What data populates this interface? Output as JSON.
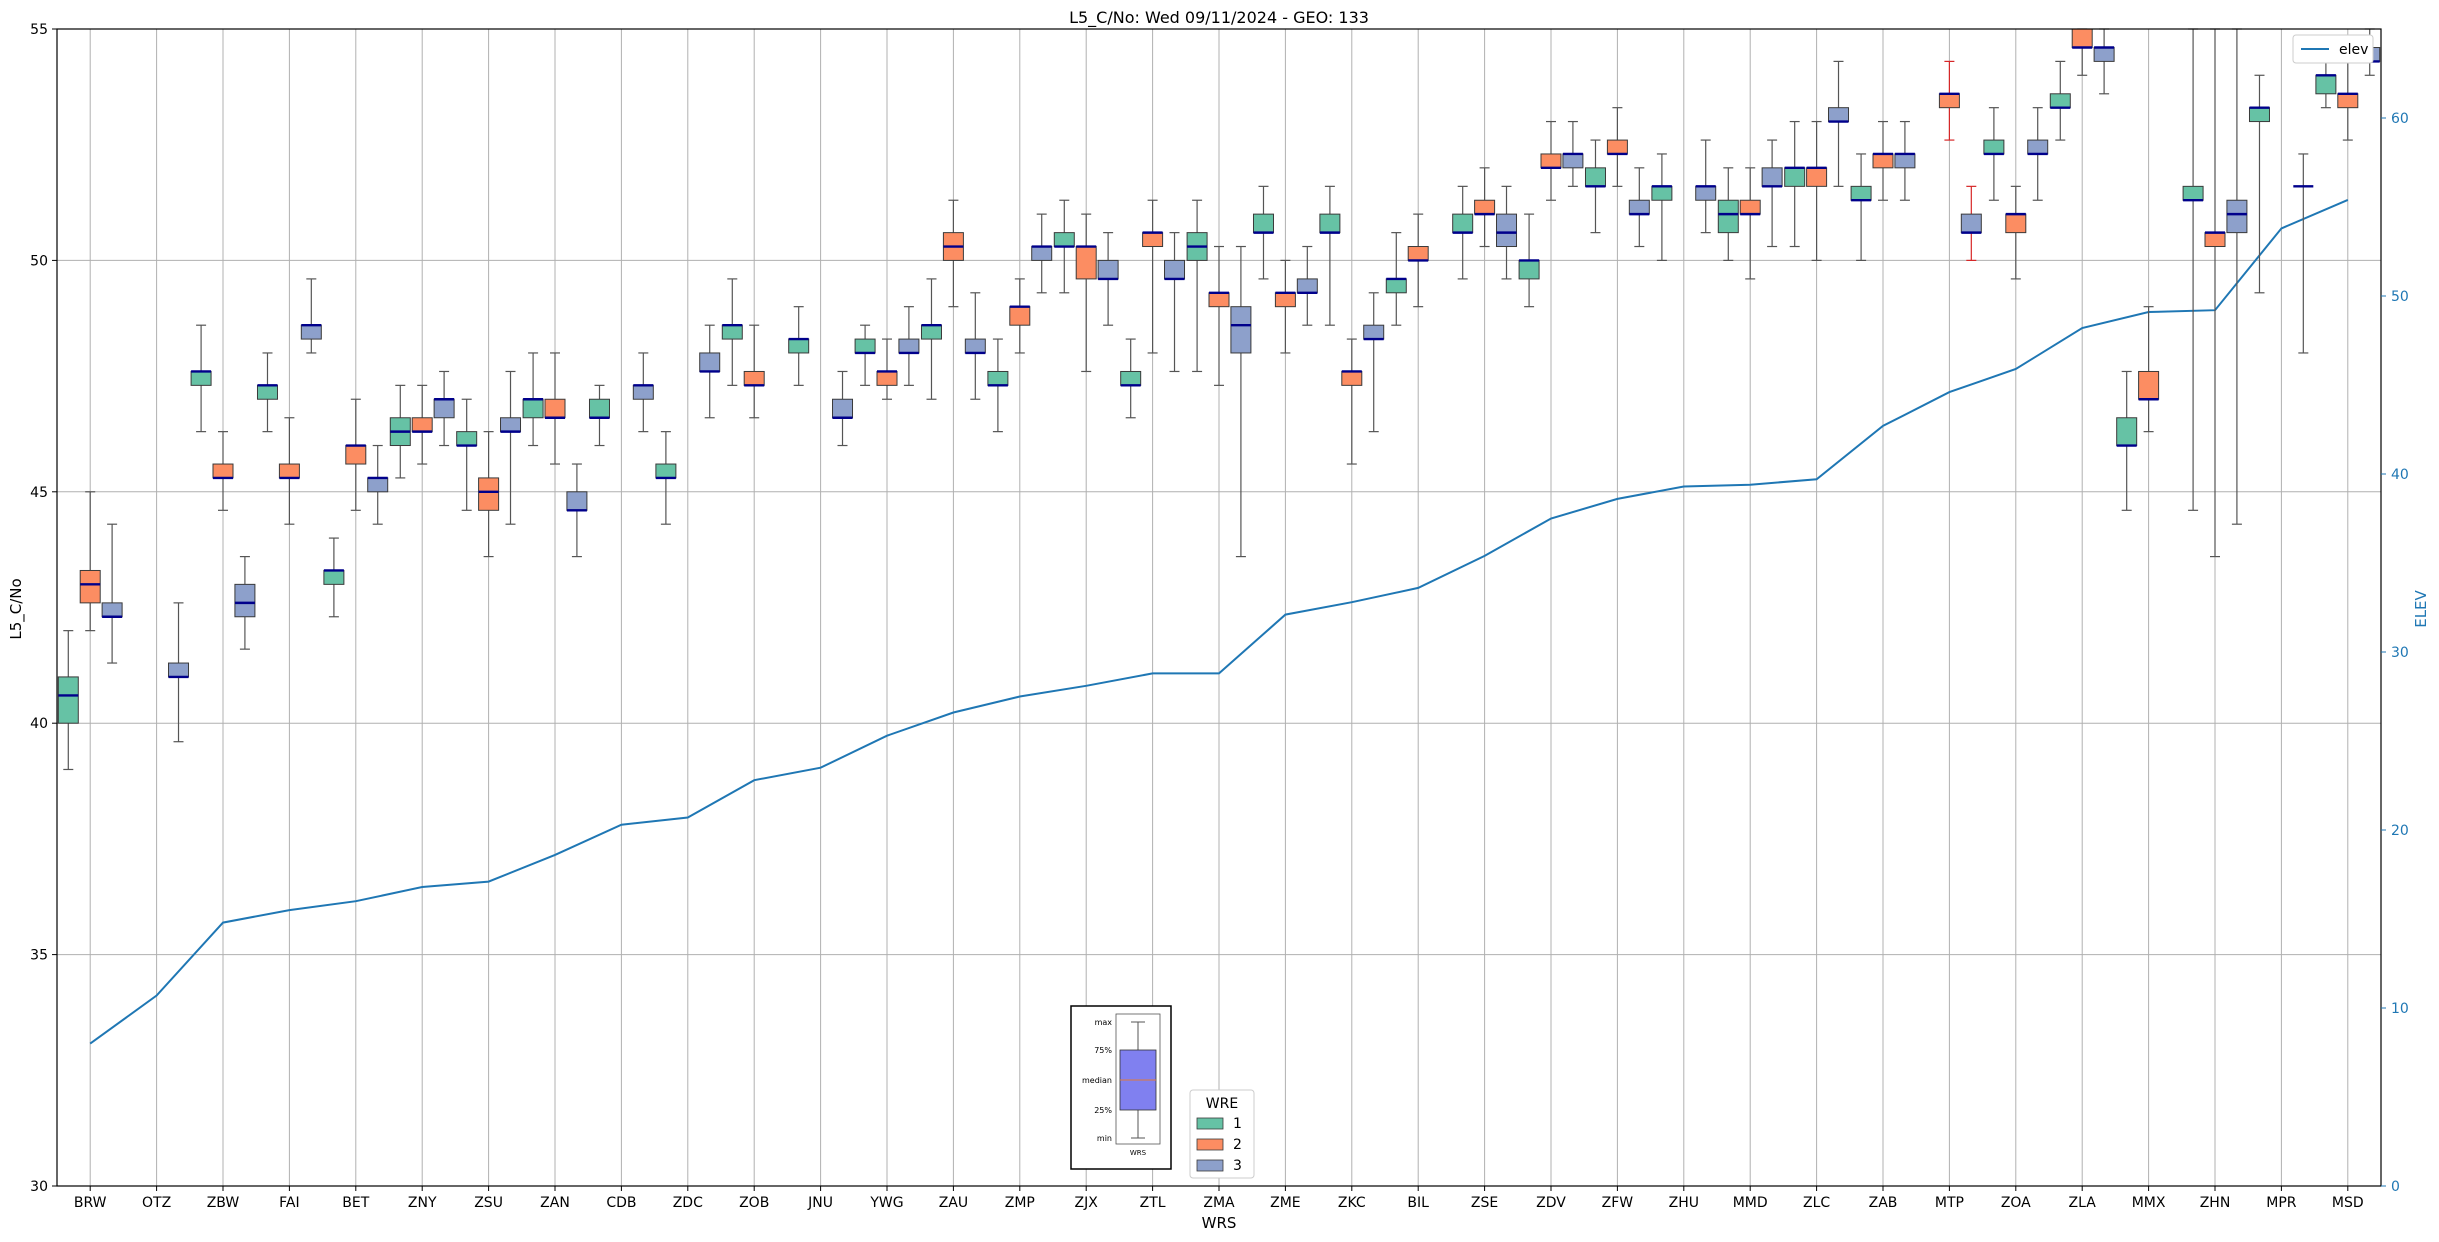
{
  "chart_data": {
    "type": "box",
    "title": "L5_C/No: Wed 09/11/2024 - GEO: 133",
    "xlabel": "WRS",
    "ylabel": "L5_C/No",
    "y2label": "ELEV",
    "ylim": [
      30,
      55
    ],
    "y2lim": [
      0,
      65
    ],
    "yticks": [
      30,
      35,
      40,
      45,
      50,
      55
    ],
    "y2ticks": [
      0,
      10,
      20,
      30,
      40,
      50,
      60
    ],
    "grid": true,
    "categories": [
      "BRW",
      "OTZ",
      "ZBW",
      "FAI",
      "BET",
      "ZNY",
      "ZSU",
      "ZAN",
      "CDB",
      "ZDC",
      "ZOB",
      "JNU",
      "YWG",
      "ZAU",
      "ZMP",
      "ZJX",
      "ZTL",
      "ZMA",
      "ZME",
      "ZKC",
      "BIL",
      "ZSE",
      "ZDV",
      "ZFW",
      "ZHU",
      "MMD",
      "ZLC",
      "ZAB",
      "MTP",
      "ZOA",
      "ZLA",
      "MMX",
      "ZHN",
      "MPR",
      "MSD"
    ],
    "colors": {
      "wre1": "#66c2a5",
      "wre2": "#fc8d62",
      "wre3": "#8da0cb",
      "elev_line": "#1f77b4",
      "median": "#00008b",
      "whisker": "#555555",
      "alt_whisker": "#d62728",
      "legend_box": "#8080f0"
    },
    "legend": {
      "title": "WRE",
      "labels": [
        "1",
        "2",
        "3"
      ],
      "placement": "bottom-center"
    },
    "line_legend": {
      "label": "elev",
      "placement": "top-right"
    },
    "series": [
      {
        "name": "1",
        "color_key": "wre1",
        "boxes": [
          {
            "cat": 0,
            "whislo": 39,
            "q1": 40,
            "med": 40.6,
            "q3": 41,
            "whishi": 42
          },
          {
            "cat": 2,
            "whislo": 46.3,
            "q1": 47.3,
            "med": 47.6,
            "q3": 47.6,
            "whishi": 48.6
          },
          {
            "cat": 3,
            "whislo": 46.3,
            "q1": 47,
            "med": 47.3,
            "q3": 47.3,
            "whishi": 48
          },
          {
            "cat": 4,
            "whislo": 42.3,
            "q1": 43,
            "med": 43.3,
            "q3": 43.3,
            "whishi": 44
          },
          {
            "cat": 5,
            "whislo": 45.3,
            "q1": 46,
            "med": 46.3,
            "q3": 46.6,
            "whishi": 47.3
          },
          {
            "cat": 6,
            "whislo": 44.6,
            "q1": 46,
            "med": 46,
            "q3": 46.3,
            "whishi": 47
          },
          {
            "cat": 7,
            "whislo": 46,
            "q1": 46.6,
            "med": 47,
            "q3": 47,
            "whishi": 48
          },
          {
            "cat": 8,
            "whislo": 46,
            "q1": 46.6,
            "med": 46.6,
            "q3": 47,
            "whishi": 47.3
          },
          {
            "cat": 9,
            "whislo": 44.3,
            "q1": 45.3,
            "med": 45.3,
            "q3": 45.6,
            "whishi": 46.3
          },
          {
            "cat": 10,
            "whislo": 47.3,
            "q1": 48.3,
            "med": 48.6,
            "q3": 48.6,
            "whishi": 49.6
          },
          {
            "cat": 11,
            "whislo": 47.3,
            "q1": 48,
            "med": 48.3,
            "q3": 48.3,
            "whishi": 49
          },
          {
            "cat": 12,
            "whislo": 47.3,
            "q1": 48,
            "med": 48,
            "q3": 48.3,
            "whishi": 48.6
          },
          {
            "cat": 13,
            "whislo": 47,
            "q1": 48.3,
            "med": 48.6,
            "q3": 48.6,
            "whishi": 49.6
          },
          {
            "cat": 14,
            "whislo": 46.3,
            "q1": 47.3,
            "med": 47.3,
            "q3": 47.6,
            "whishi": 48.3
          },
          {
            "cat": 15,
            "whislo": 49.3,
            "q1": 50.3,
            "med": 50.3,
            "q3": 50.6,
            "whishi": 51.3
          },
          {
            "cat": 16,
            "whislo": 46.6,
            "q1": 47.3,
            "med": 47.3,
            "q3": 47.6,
            "whishi": 48.3
          },
          {
            "cat": 17,
            "whislo": 47.6,
            "q1": 50,
            "med": 50.3,
            "q3": 50.6,
            "whishi": 51.3
          },
          {
            "cat": 18,
            "whislo": 49.6,
            "q1": 50.6,
            "med": 50.6,
            "q3": 51,
            "whishi": 51.6
          },
          {
            "cat": 19,
            "whislo": 48.6,
            "q1": 50.6,
            "med": 50.6,
            "q3": 51,
            "whishi": 51.6
          },
          {
            "cat": 20,
            "whislo": 48.6,
            "q1": 49.3,
            "med": 49.6,
            "q3": 49.6,
            "whishi": 50.6
          },
          {
            "cat": 21,
            "whislo": 49.6,
            "q1": 50.6,
            "med": 50.6,
            "q3": 51,
            "whishi": 51.6
          },
          {
            "cat": 22,
            "whislo": 49,
            "q1": 49.6,
            "med": 50,
            "q3": 50,
            "whishi": 51
          },
          {
            "cat": 23,
            "whislo": 50.6,
            "q1": 51.6,
            "med": 51.6,
            "q3": 52,
            "whishi": 52.6
          },
          {
            "cat": 24,
            "whislo": 50,
            "q1": 51.3,
            "med": 51.6,
            "q3": 51.6,
            "whishi": 52.3
          },
          {
            "cat": 25,
            "whislo": 50,
            "q1": 50.6,
            "med": 51,
            "q3": 51.3,
            "whishi": 52
          },
          {
            "cat": 26,
            "whislo": 50.3,
            "q1": 51.6,
            "med": 52,
            "q3": 52,
            "whishi": 53
          },
          {
            "cat": 27,
            "whislo": 50,
            "q1": 51.3,
            "med": 51.3,
            "q3": 51.6,
            "whishi": 52.3
          },
          {
            "cat": 29,
            "whislo": 51.3,
            "q1": 52.3,
            "med": 52.3,
            "q3": 52.6,
            "whishi": 53.3
          },
          {
            "cat": 30,
            "whislo": 52.6,
            "q1": 53.3,
            "med": 53.3,
            "q3": 53.6,
            "whishi": 54.3
          },
          {
            "cat": 31,
            "whislo": 44.6,
            "q1": 46,
            "med": 46,
            "q3": 46.6,
            "whishi": 47.6
          },
          {
            "cat": 32,
            "whislo": 44.6,
            "q1": 51.3,
            "med": 51.3,
            "q3": 51.6,
            "whishi": 55
          },
          {
            "cat": 33,
            "whislo": 49.3,
            "q1": 53,
            "med": 53.3,
            "q3": 53.3,
            "whishi": 54
          },
          {
            "cat": 34,
            "whislo": 53.3,
            "q1": 53.6,
            "med": 54,
            "q3": 54,
            "whishi": 54.6
          }
        ]
      },
      {
        "name": "2",
        "color_key": "wre2",
        "boxes": [
          {
            "cat": 0,
            "whislo": 42,
            "q1": 42.6,
            "med": 43,
            "q3": 43.3,
            "whishi": 45
          },
          {
            "cat": 2,
            "whislo": 44.6,
            "q1": 45.3,
            "med": 45.3,
            "q3": 45.6,
            "whishi": 46.3
          },
          {
            "cat": 3,
            "whislo": 44.3,
            "q1": 45.3,
            "med": 45.3,
            "q3": 45.6,
            "whishi": 46.6
          },
          {
            "cat": 4,
            "whislo": 44.6,
            "q1": 45.6,
            "med": 46,
            "q3": 46,
            "whishi": 47
          },
          {
            "cat": 5,
            "whislo": 45.6,
            "q1": 46.3,
            "med": 46.3,
            "q3": 46.6,
            "whishi": 47.3
          },
          {
            "cat": 6,
            "whislo": 43.6,
            "q1": 44.6,
            "med": 45,
            "q3": 45.3,
            "whishi": 46.3
          },
          {
            "cat": 7,
            "whislo": 45.6,
            "q1": 46.6,
            "med": 46.6,
            "q3": 47,
            "whishi": 48
          },
          {
            "cat": 10,
            "whislo": 46.6,
            "q1": 47.3,
            "med": 47.3,
            "q3": 47.6,
            "whishi": 48.6
          },
          {
            "cat": 12,
            "whislo": 47,
            "q1": 47.3,
            "med": 47.6,
            "q3": 47.6,
            "whishi": 48.3
          },
          {
            "cat": 13,
            "whislo": 49,
            "q1": 50,
            "med": 50.3,
            "q3": 50.6,
            "whishi": 51.3
          },
          {
            "cat": 14,
            "whislo": 48,
            "q1": 48.6,
            "med": 49,
            "q3": 49,
            "whishi": 49.6
          },
          {
            "cat": 15,
            "whislo": 47.6,
            "q1": 49.6,
            "med": 50.3,
            "q3": 50.3,
            "whishi": 51
          },
          {
            "cat": 16,
            "whislo": 48,
            "q1": 50.3,
            "med": 50.6,
            "q3": 50.6,
            "whishi": 51.3
          },
          {
            "cat": 17,
            "whislo": 47.3,
            "q1": 49,
            "med": 49.3,
            "q3": 49.3,
            "whishi": 50.3
          },
          {
            "cat": 18,
            "whislo": 48,
            "q1": 49,
            "med": 49.3,
            "q3": 49.3,
            "whishi": 50
          },
          {
            "cat": 19,
            "whislo": 45.6,
            "q1": 47.3,
            "med": 47.6,
            "q3": 47.6,
            "whishi": 48.3
          },
          {
            "cat": 20,
            "whislo": 49,
            "q1": 50,
            "med": 50,
            "q3": 50.3,
            "whishi": 51
          },
          {
            "cat": 21,
            "whislo": 50.3,
            "q1": 51,
            "med": 51,
            "q3": 51.3,
            "whishi": 52
          },
          {
            "cat": 22,
            "whislo": 51.3,
            "q1": 52,
            "med": 52,
            "q3": 52.3,
            "whishi": 53
          },
          {
            "cat": 23,
            "whislo": 51.6,
            "q1": 52.3,
            "med": 52.3,
            "q3": 52.6,
            "whishi": 53.3
          },
          {
            "cat": 25,
            "whislo": 49.6,
            "q1": 51,
            "med": 51,
            "q3": 51.3,
            "whishi": 52
          },
          {
            "cat": 26,
            "whislo": 50,
            "q1": 51.6,
            "med": 52,
            "q3": 52,
            "whishi": 53
          },
          {
            "cat": 27,
            "whislo": 51.3,
            "q1": 52,
            "med": 52.3,
            "q3": 52.3,
            "whishi": 53
          },
          {
            "cat": 28,
            "whislo": 52.6,
            "q1": 53.3,
            "med": 53.6,
            "q3": 53.6,
            "whishi": 54.3,
            "whisker_color_key": "alt_whisker"
          },
          {
            "cat": 29,
            "whislo": 49.6,
            "q1": 50.6,
            "med": 51,
            "q3": 51,
            "whishi": 51.6
          },
          {
            "cat": 30,
            "whislo": 54,
            "q1": 54.6,
            "med": 54.6,
            "q3": 55,
            "whishi": 55
          },
          {
            "cat": 31,
            "whislo": 46.3,
            "q1": 47,
            "med": 47,
            "q3": 47.6,
            "whishi": 49
          },
          {
            "cat": 32,
            "whislo": 43.6,
            "q1": 50.3,
            "med": 50.6,
            "q3": 50.6,
            "whishi": 55
          },
          {
            "cat": 34,
            "whislo": 52.6,
            "q1": 53.3,
            "med": 53.6,
            "q3": 53.6,
            "whishi": 54.3
          }
        ]
      },
      {
        "name": "3",
        "color_key": "wre3",
        "boxes": [
          {
            "cat": 0,
            "whislo": 41.3,
            "q1": 42.3,
            "med": 42.3,
            "q3": 42.6,
            "whishi": 44.3
          },
          {
            "cat": 1,
            "whislo": 39.6,
            "q1": 41,
            "med": 41,
            "q3": 41.3,
            "whishi": 42.6
          },
          {
            "cat": 2,
            "whislo": 41.6,
            "q1": 42.3,
            "med": 42.6,
            "q3": 43,
            "whishi": 43.6
          },
          {
            "cat": 3,
            "whislo": 48,
            "q1": 48.3,
            "med": 48.6,
            "q3": 48.6,
            "whishi": 49.6
          },
          {
            "cat": 4,
            "whislo": 44.3,
            "q1": 45,
            "med": 45.3,
            "q3": 45.3,
            "whishi": 46
          },
          {
            "cat": 5,
            "whislo": 46,
            "q1": 46.6,
            "med": 47,
            "q3": 47,
            "whishi": 47.6
          },
          {
            "cat": 6,
            "whislo": 44.3,
            "q1": 46.3,
            "med": 46.3,
            "q3": 46.6,
            "whishi": 47.6
          },
          {
            "cat": 7,
            "whislo": 43.6,
            "q1": 44.6,
            "med": 44.6,
            "q3": 45,
            "whishi": 45.6
          },
          {
            "cat": 8,
            "whislo": 46.3,
            "q1": 47,
            "med": 47.3,
            "q3": 47.3,
            "whishi": 48
          },
          {
            "cat": 9,
            "whislo": 46.6,
            "q1": 47.6,
            "med": 47.6,
            "q3": 48,
            "whishi": 48.6
          },
          {
            "cat": 11,
            "whislo": 46,
            "q1": 46.6,
            "med": 46.6,
            "q3": 47,
            "whishi": 47.6
          },
          {
            "cat": 12,
            "whislo": 47.3,
            "q1": 48,
            "med": 48,
            "q3": 48.3,
            "whishi": 49
          },
          {
            "cat": 13,
            "whislo": 47,
            "q1": 48,
            "med": 48,
            "q3": 48.3,
            "whishi": 49.3
          },
          {
            "cat": 14,
            "whislo": 49.3,
            "q1": 50,
            "med": 50.3,
            "q3": 50.3,
            "whishi": 51
          },
          {
            "cat": 15,
            "whislo": 48.6,
            "q1": 49.6,
            "med": 49.6,
            "q3": 50,
            "whishi": 50.6
          },
          {
            "cat": 16,
            "whislo": 47.6,
            "q1": 49.6,
            "med": 49.6,
            "q3": 50,
            "whishi": 50.6
          },
          {
            "cat": 17,
            "whislo": 43.6,
            "q1": 48,
            "med": 48.6,
            "q3": 49,
            "whishi": 50.3
          },
          {
            "cat": 18,
            "whislo": 48.6,
            "q1": 49.3,
            "med": 49.3,
            "q3": 49.6,
            "whishi": 50.3
          },
          {
            "cat": 19,
            "whislo": 46.3,
            "q1": 48.3,
            "med": 48.3,
            "q3": 48.6,
            "whishi": 49.3
          },
          {
            "cat": 21,
            "whislo": 49.6,
            "q1": 50.3,
            "med": 50.6,
            "q3": 51,
            "whishi": 51.6
          },
          {
            "cat": 22,
            "whislo": 51.6,
            "q1": 52,
            "med": 52.3,
            "q3": 52.3,
            "whishi": 53
          },
          {
            "cat": 23,
            "whislo": 50.3,
            "q1": 51,
            "med": 51,
            "q3": 51.3,
            "whishi": 52
          },
          {
            "cat": 24,
            "whislo": 50.6,
            "q1": 51.3,
            "med": 51.6,
            "q3": 51.6,
            "whishi": 52.6
          },
          {
            "cat": 25,
            "whislo": 50.3,
            "q1": 51.6,
            "med": 51.6,
            "q3": 52,
            "whishi": 52.6
          },
          {
            "cat": 26,
            "whislo": 51.6,
            "q1": 53,
            "med": 53,
            "q3": 53.3,
            "whishi": 54.3
          },
          {
            "cat": 27,
            "whislo": 51.3,
            "q1": 52,
            "med": 52.3,
            "q3": 52.3,
            "whishi": 53
          },
          {
            "cat": 28,
            "whislo": 50,
            "q1": 50.6,
            "med": 50.6,
            "q3": 51,
            "whishi": 51.6,
            "whisker_color_key": "alt_whisker"
          },
          {
            "cat": 29,
            "whislo": 51.3,
            "q1": 52.3,
            "med": 52.3,
            "q3": 52.6,
            "whishi": 53.3
          },
          {
            "cat": 30,
            "whislo": 53.6,
            "q1": 54.3,
            "med": 54.6,
            "q3": 54.6,
            "whishi": 55
          },
          {
            "cat": 32,
            "whislo": 44.3,
            "q1": 50.6,
            "med": 51,
            "q3": 51.3,
            "whishi": 55
          },
          {
            "cat": 33,
            "whislo": 48,
            "q1": 51.6,
            "med": 51.6,
            "q3": 51.6,
            "whishi": 52.3
          },
          {
            "cat": 34,
            "whislo": 54,
            "q1": 54.3,
            "med": 54.3,
            "q3": 54.6,
            "whishi": 55
          }
        ]
      }
    ],
    "elev_series": {
      "name": "elev",
      "values": [
        8,
        10.7,
        14.8,
        15.5,
        16,
        16.8,
        17.1,
        18.6,
        20.3,
        20.7,
        22.8,
        23.5,
        25.3,
        26.6,
        27.5,
        28.1,
        28.8,
        28.8,
        32.1,
        32.8,
        33.6,
        35.4,
        37.5,
        38.6,
        39.3,
        39.4,
        39.7,
        42.7,
        44.6,
        45.9,
        48.2,
        49.1,
        49.2,
        53.8,
        55.4
      ]
    },
    "inset_legend": {
      "labels": [
        "max",
        "75%",
        "median",
        "25%",
        "min"
      ],
      "xlabel": "WRS"
    }
  }
}
